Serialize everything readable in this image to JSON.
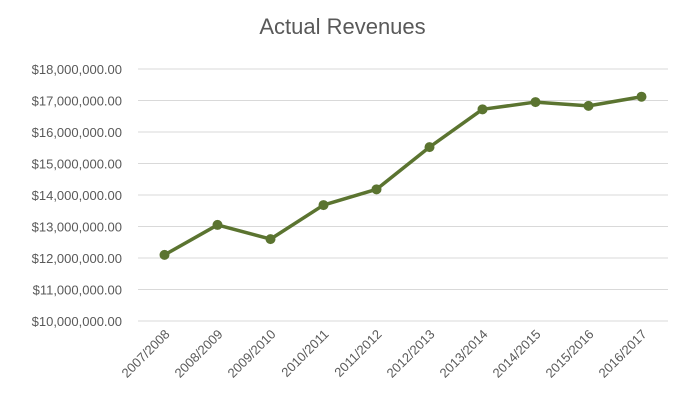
{
  "chart_data": {
    "type": "line",
    "title": "Actual Revenues",
    "xlabel": "",
    "ylabel": "",
    "categories": [
      "2007/2008",
      "2008/2009",
      "2009/2010",
      "2010/2011",
      "2011/2012",
      "2012/2013",
      "2013/2014",
      "2014/2015",
      "2015/2016",
      "2016/2017"
    ],
    "series": [
      {
        "values": [
          12100000,
          13050000,
          12600000,
          13680000,
          14180000,
          15520000,
          16720000,
          16950000,
          16830000,
          17120000
        ],
        "color": "#5b7430"
      }
    ],
    "ylim": [
      10000000,
      18000000
    ],
    "yticks": [
      10000000,
      11000000,
      12000000,
      13000000,
      14000000,
      15000000,
      16000000,
      17000000,
      18000000
    ],
    "ytick_labels": [
      "$10,000,000.00",
      "$11,000,000.00",
      "$12,000,000.00",
      "$13,000,000.00",
      "$14,000,000.00",
      "$15,000,000.00",
      "$16,000,000.00",
      "$17,000,000.00",
      "$18,000,000.00"
    ],
    "grid": true,
    "legend": "none"
  }
}
